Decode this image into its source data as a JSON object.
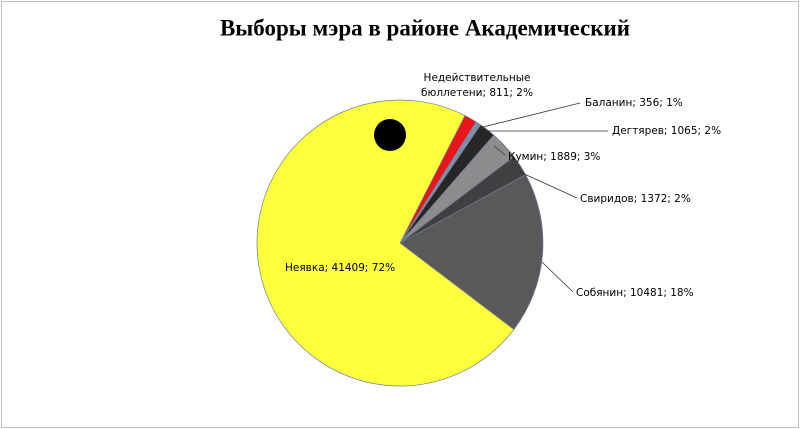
{
  "chart_data": {
    "type": "pie",
    "title": "Выборы мэра в районе Академический",
    "values": [
      811,
      356,
      1065,
      1889,
      1372,
      10481,
      41409
    ],
    "value_labels": [
      "Недействительные бюллетени; 811; 2%",
      "Баланин; 356; 1%",
      "Дегтярев; 1065; 2%",
      "Кумин; 1889; 3%",
      "Свиридов; 1372; 2%",
      "Собянин; 10481; 18%",
      "Неявка; 41409; 72%"
    ],
    "colors": [
      "#e8151b",
      "#7f8fa9",
      "#262626",
      "#8c8c8c",
      "#404040",
      "#595959",
      "#ffff3c"
    ]
  }
}
